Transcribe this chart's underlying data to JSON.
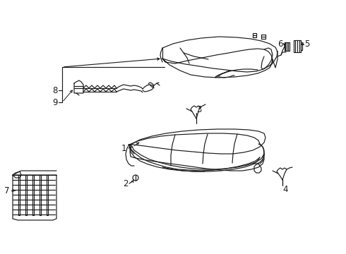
{
  "bg_color": "#ffffff",
  "line_color": "#1a1a1a",
  "fig_width": 4.9,
  "fig_height": 3.6,
  "dpi": 100,
  "font_size": 8.5
}
